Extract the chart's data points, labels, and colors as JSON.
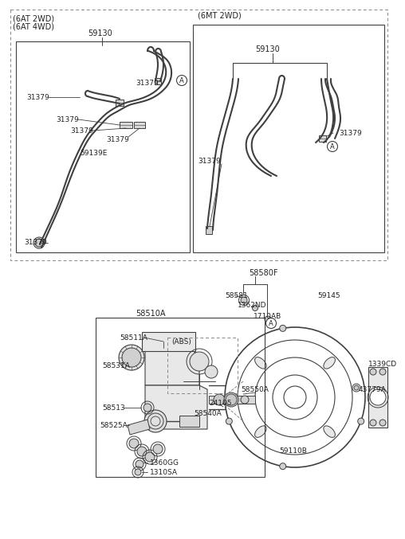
{
  "bg_color": "#ffffff",
  "line_color": "#404040",
  "text_color": "#222222",
  "dashed_color": "#888888",
  "parts": {
    "59130": "59130",
    "31379": "31379",
    "59139E": "59139E",
    "58580F": "58580F",
    "58581": "58581",
    "1362ND": "1362ND",
    "1710AB": "1710AB",
    "59145": "59145",
    "1339CD": "1339CD",
    "43779A": "43779A",
    "59110B": "59110B",
    "58510A": "58510A",
    "58511A": "58511A",
    "58531A": "58531A",
    "58513": "58513",
    "58525A": "58525A",
    "58550A": "58550A",
    "24105": "24105",
    "58540A": "58540A",
    "1360GG": "1360GG",
    "1310SA": "1310SA",
    "ABS": "(ABS)",
    "A": "A",
    "6AT2WD": "(6AT 2WD)",
    "6AT4WD": "(6AT 4WD)",
    "6MT2WD": "(6MT 2WD)"
  }
}
